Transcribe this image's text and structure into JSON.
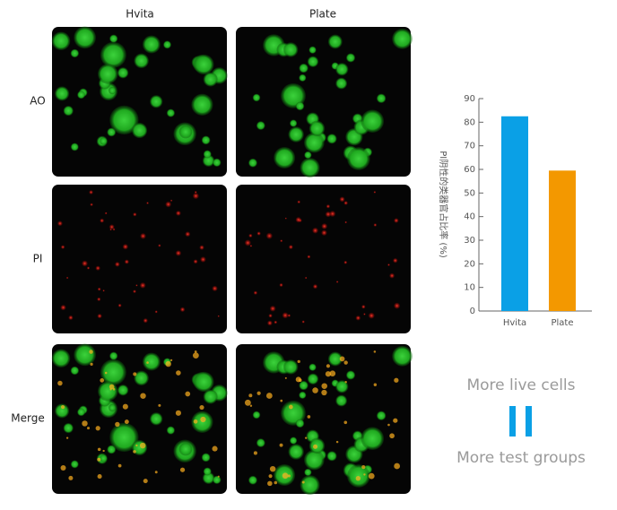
{
  "figure": {
    "columns": [
      "Hvita",
      "Plate"
    ],
    "rows": [
      "AO",
      "PI",
      "Merge"
    ],
    "annotations": [
      "More live cells",
      "More test groups"
    ]
  },
  "chart_data": {
    "type": "bar",
    "ylabel": "PI阴性的类器官占比率 (%)",
    "categories": [
      "Hvita",
      "Plate"
    ],
    "values": [
      82.5,
      59.5
    ],
    "colors": [
      "#0aa0e6",
      "#f39800"
    ],
    "ylim": [
      0,
      90
    ],
    "yticks": [
      0,
      10,
      20,
      30,
      40,
      50,
      60,
      70,
      80,
      90
    ],
    "grid": false
  }
}
